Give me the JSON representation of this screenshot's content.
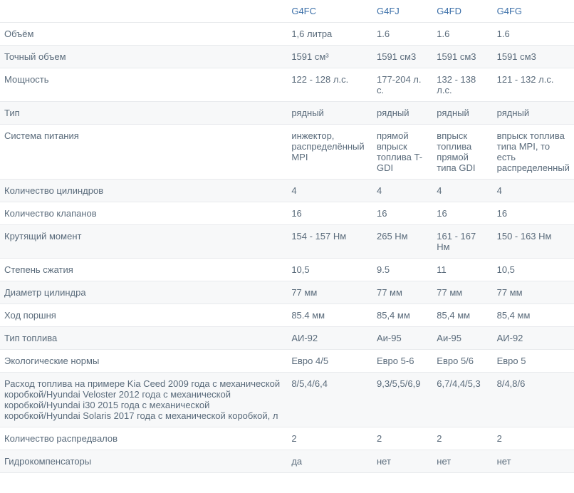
{
  "colors": {
    "header_text": "#3b6fa8",
    "body_text": "#5a6b7b",
    "row_alt_bg": "#f7f8f9",
    "row_bg": "#ffffff",
    "border": "#e8eaed"
  },
  "table": {
    "columns": [
      "G4FC",
      "G4FJ",
      "G4FD",
      "G4FG"
    ],
    "rows": [
      {
        "label": "Объём",
        "values": [
          "1,6 литра",
          "1.6",
          "1.6",
          "1.6"
        ]
      },
      {
        "label": "Точный объем",
        "values": [
          "1591 см³",
          "1591 см3",
          "1591 см3",
          "1591 см3"
        ]
      },
      {
        "label": "Мощность",
        "values": [
          "122 - 128 л.с.",
          "177-204 л. с.",
          "132 - 138 л.с.",
          "121 - 132 л.с."
        ]
      },
      {
        "label": "Тип",
        "values": [
          "рядный",
          "рядный",
          "рядный",
          "рядный"
        ]
      },
      {
        "label": "Система питания",
        "values": [
          "инжектор, распределённый MPI",
          "прямой впрыск топлива T-GDI",
          "впрыск топлива прямой типа GDI",
          "впрыск топлива типа MPI, то есть распределенный"
        ]
      },
      {
        "label": "Количество цилиндров",
        "values": [
          "4",
          "4",
          "4",
          "4"
        ]
      },
      {
        "label": "Количество клапанов",
        "values": [
          "16",
          "16",
          "16",
          "16"
        ]
      },
      {
        "label": "Крутящий момент",
        "values": [
          "154 - 157 Нм",
          "265 Нм",
          "161 - 167 Нм",
          "150 - 163 Нм"
        ]
      },
      {
        "label": "Степень сжатия",
        "values": [
          "10,5",
          "9.5",
          "11",
          "10,5"
        ]
      },
      {
        "label": "Диаметр цилиндра",
        "values": [
          "77 мм",
          "77 мм",
          "77 мм",
          "77 мм"
        ]
      },
      {
        "label": "Ход поршня",
        "values": [
          "85.4 мм",
          "85,4 мм",
          "85,4 мм",
          "85,4 мм"
        ]
      },
      {
        "label": "Тип топлива",
        "values": [
          "АИ-92",
          "Аи-95",
          "Аи-95",
          "АИ-92"
        ]
      },
      {
        "label": "Экологические нормы",
        "values": [
          "Евро 4/5",
          "Евро 5-6",
          "Евро 5/6",
          "Евро 5"
        ]
      },
      {
        "label": "Расход топлива на примере Kia Ceed 2009 года с механической коробкой/Hyundai Veloster 2012 года с механической коробкой/Hyundai i30 2015 года с механической коробкой/Hyundai Solaris 2017 года с механической коробкой, л",
        "values": [
          "8/5,4/6,4",
          "9,3/5,5/6,9",
          "6,7/4,4/5,3",
          "8/4,8/6"
        ]
      },
      {
        "label": "Количество распредвалов",
        "values": [
          "2",
          "2",
          "2",
          "2"
        ]
      },
      {
        "label": "Гидрокомпенсаторы",
        "values": [
          "да",
          "нет",
          "нет",
          "нет"
        ]
      }
    ]
  }
}
